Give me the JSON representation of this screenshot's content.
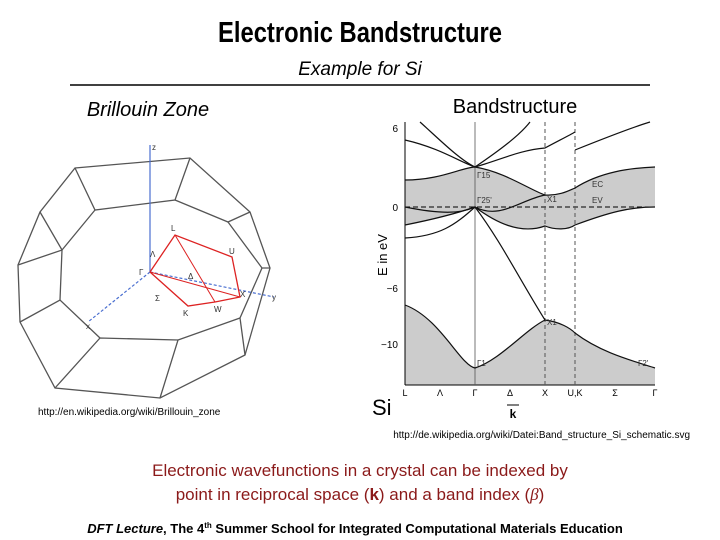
{
  "slide": {
    "title": "Electronic Bandstructure",
    "subtitle": "Example for Si",
    "left": {
      "heading": "Brillouin Zone",
      "labels": {
        "z": "z",
        "L": "L",
        "Lambda": "Λ",
        "Gamma": "Γ",
        "Delta": "Δ",
        "U": "U",
        "Sigma": "Σ",
        "X": "X",
        "y": "y",
        "K": "K",
        "W": "W",
        "x": "x"
      },
      "source": "http://en.wikipedia.org/wiki/Brillouin_zone"
    },
    "right": {
      "heading": "Bandstructure",
      "y_axis_label": "E in eV",
      "y_ticks": [
        "6",
        "0",
        "−6",
        "−10"
      ],
      "k_points": [
        "L",
        "Λ",
        "Γ",
        "Δ",
        "X",
        "U,K",
        "Σ",
        "Γ"
      ],
      "point_labels": {
        "G15": "Γ15",
        "G25": "Γ25'",
        "Ec": "EC",
        "Ev": "EV",
        "X1a": "X1",
        "X1b": "X1",
        "G1": "Γ1",
        "G2": "Γ2'"
      },
      "material": "Si",
      "k_symbol": "k",
      "source": "http://de.wikipedia.org/wiki/Datei:Band_structure_Si_schematic.svg"
    },
    "caption": {
      "line1": "Electronic wavefunctions in a crystal can be indexed by",
      "line2": [
        "point in reciprocal space (",
        "k",
        ") and a band index (",
        "β",
        ")"
      ]
    },
    "footer": [
      "DFT Lecture",
      ", The 4",
      "th",
      " Summer School for Integrated Computational Materials Education"
    ]
  }
}
